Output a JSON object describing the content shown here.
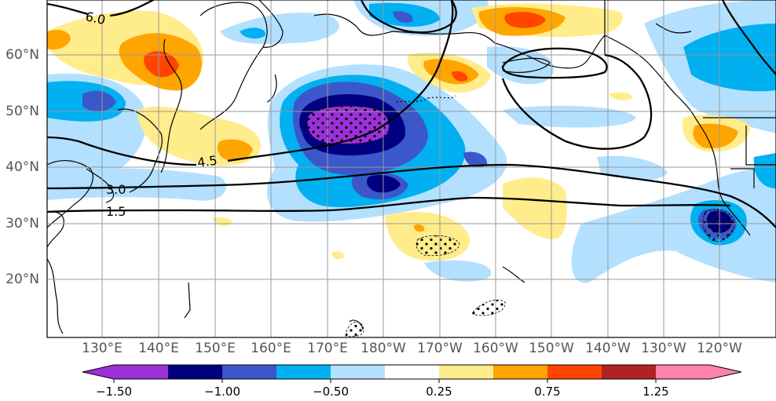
{
  "map": {
    "latitude_labels": [
      "60°N",
      "50°N",
      "40°N",
      "30°N",
      "20°N"
    ],
    "longitude_labels": [
      "130°E",
      "140°E",
      "150°E",
      "160°E",
      "170°E",
      "180°W",
      "170°W",
      "160°W",
      "150°W",
      "140°W",
      "130°W",
      "120°W"
    ],
    "contour_labels": [
      "6.0",
      "4.5",
      "3.0",
      "1.5"
    ],
    "gridlines": true
  },
  "colorbar": {
    "tick_labels": [
      "−1.50",
      "−1.00",
      "−0.50",
      "0.25",
      "0.75",
      "1.25"
    ],
    "colors": [
      "#9b30d9",
      "#000080",
      "#3b57c9",
      "#00b0f0",
      "#b3e0ff",
      "#ffffff",
      "#ffec8b",
      "#ffa500",
      "#ff4500",
      "#b22222",
      "#ff82ab"
    ],
    "extend": "both"
  }
}
